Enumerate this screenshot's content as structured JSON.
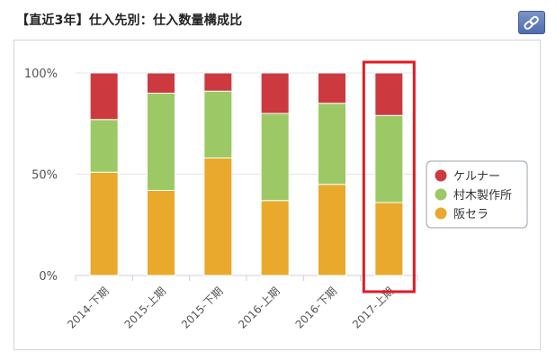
{
  "header": {
    "title": "【直近3年】仕入先別：仕入数量構成比"
  },
  "colors": {
    "ケルナー": "#cc3a40",
    "村木製作所": "#9cc965",
    "阪セラ": "#e9a92c",
    "highlight": "#e01b24"
  },
  "chart_data": {
    "type": "bar",
    "stacked": true,
    "title": "【直近3年】仕入先別：仕入数量構成比",
    "categories": [
      "2014-下期",
      "2015-上期",
      "2015-下期",
      "2016-上期",
      "2016-下期",
      "2017-上期"
    ],
    "series": [
      {
        "name": "阪セラ",
        "values": [
          51,
          42,
          58,
          37,
          45,
          36
        ]
      },
      {
        "name": "村木製作所",
        "values": [
          26,
          48,
          33,
          43,
          40,
          43
        ]
      },
      {
        "name": "ケルナー",
        "values": [
          23,
          10,
          9,
          20,
          15,
          21
        ]
      }
    ],
    "legend_order": [
      "ケルナー",
      "村木製作所",
      "阪セラ"
    ],
    "yticks": [
      "0%",
      "50%",
      "100%"
    ],
    "ylim": [
      0,
      100
    ],
    "xlabel": "",
    "ylabel": "",
    "grid": true,
    "legend_position": "right",
    "highlighted_category": "2017-上期"
  }
}
